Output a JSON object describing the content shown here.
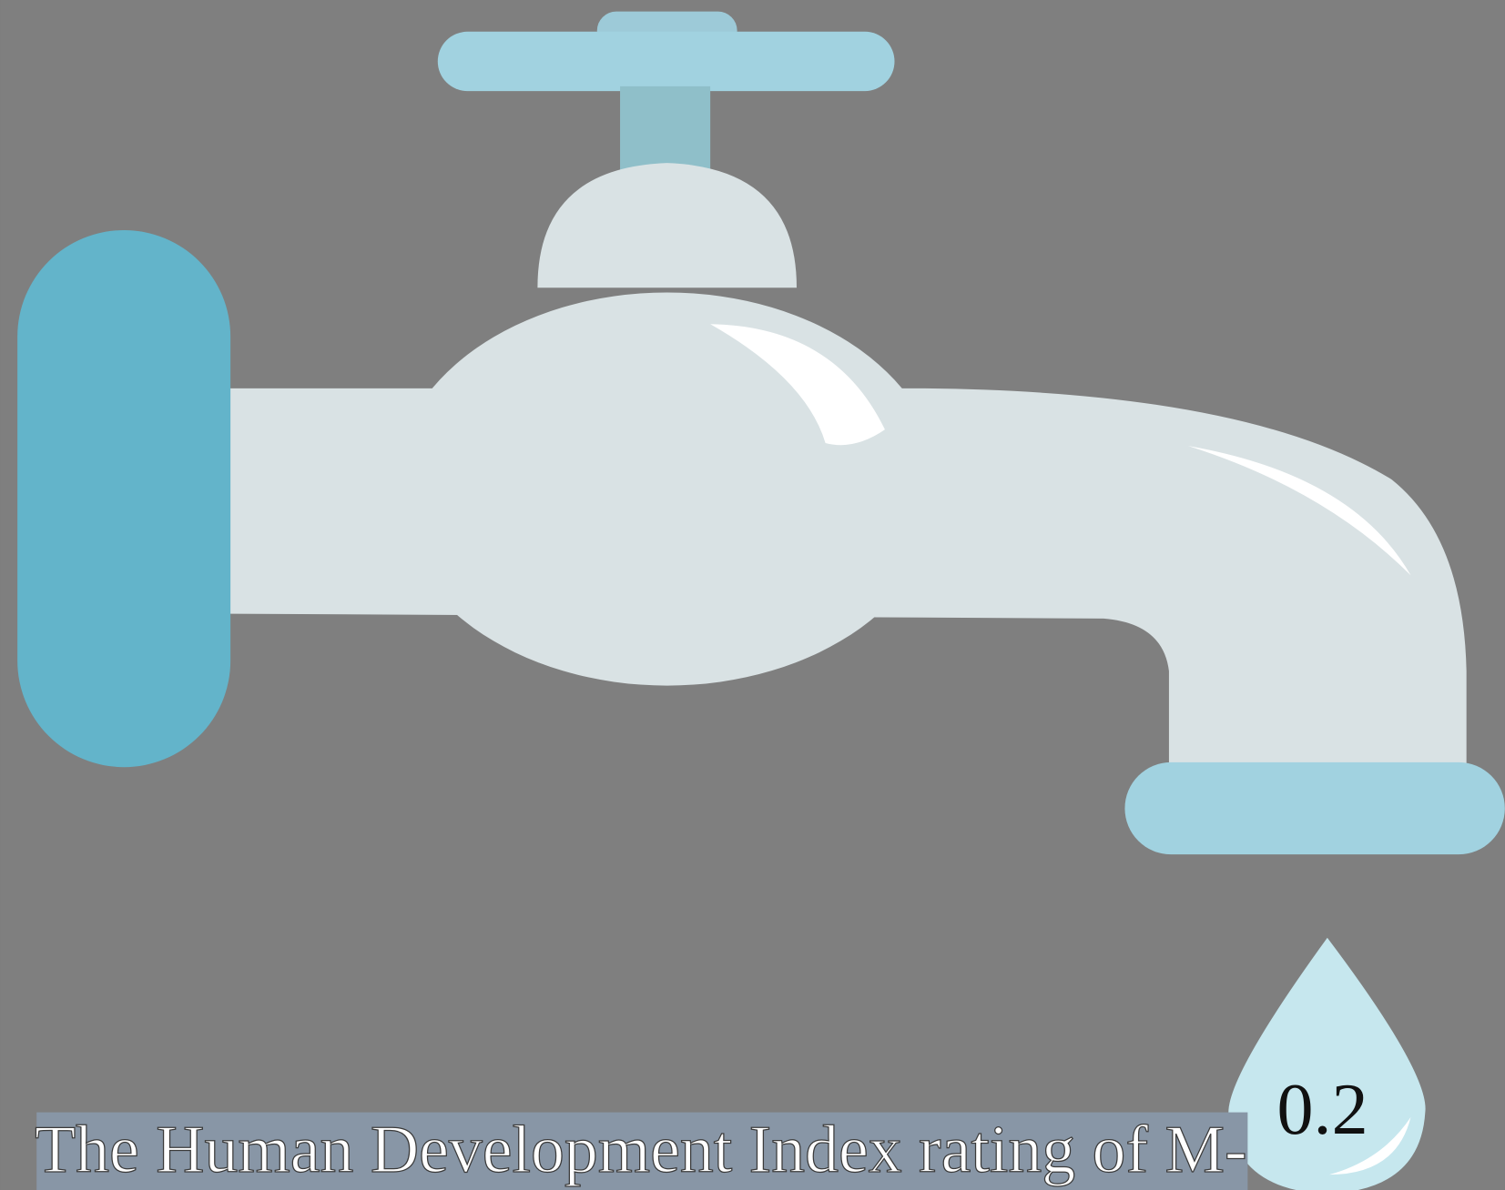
{
  "caption": "The Human Development Index rating of M-",
  "drop_value": "0.2"
}
